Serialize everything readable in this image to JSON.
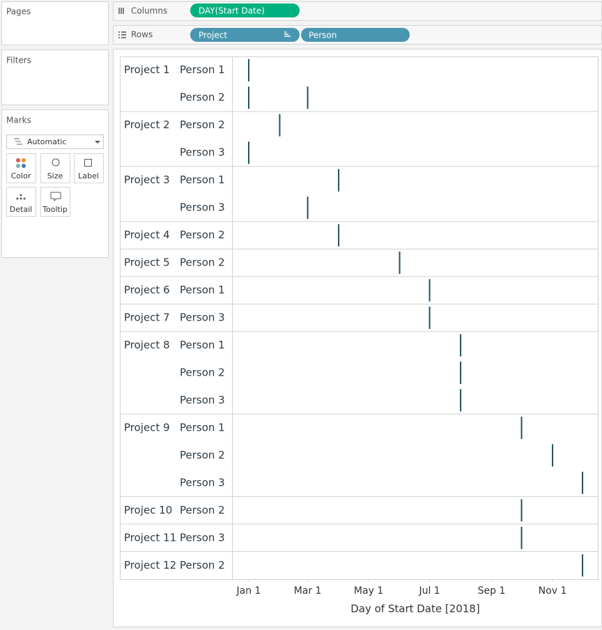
{
  "ui": {
    "panels": {
      "pages": "Pages",
      "filters": "Filters",
      "marks": "Marks"
    },
    "mark_type": "Automatic",
    "mark_buttons": [
      "Color",
      "Size",
      "Label",
      "Detail",
      "Tooltip"
    ],
    "shelves": {
      "columns": {
        "label": "Columns",
        "pills": [
          "DAY(Start Date)"
        ]
      },
      "rows": {
        "label": "Rows",
        "pills": [
          "Project",
          "Person"
        ]
      }
    }
  },
  "chart_data": {
    "type": "gantt",
    "x_label": "Day of Start Date [2018]",
    "color": "#24505f",
    "xlim": [
      -15.7,
      351
    ],
    "xticks": [
      {
        "value": 1,
        "label": "Jan 1"
      },
      {
        "value": 60,
        "label": "Mar 1"
      },
      {
        "value": 121,
        "label": "May 1"
      },
      {
        "value": 182,
        "label": "Jul 1"
      },
      {
        "value": 244,
        "label": "Sep 1"
      },
      {
        "value": 305,
        "label": "Nov 1"
      }
    ],
    "groups": [
      {
        "project": "Project 1",
        "people": [
          {
            "person": "Person 1",
            "starts": [
              1
            ]
          },
          {
            "person": "Person 2",
            "starts": [
              1,
              60
            ]
          }
        ]
      },
      {
        "project": "Project 2",
        "people": [
          {
            "person": "Person 2",
            "starts": [
              32
            ]
          },
          {
            "person": "Person 3",
            "starts": [
              1
            ]
          }
        ]
      },
      {
        "project": "Project 3",
        "people": [
          {
            "person": "Person 1",
            "starts": [
              91
            ]
          },
          {
            "person": "Person 3",
            "starts": [
              60
            ]
          }
        ]
      },
      {
        "project": "Project 4",
        "people": [
          {
            "person": "Person 2",
            "starts": [
              91
            ]
          }
        ]
      },
      {
        "project": "Project 5",
        "people": [
          {
            "person": "Person 2",
            "starts": [
              152
            ]
          }
        ]
      },
      {
        "project": "Project 6",
        "people": [
          {
            "person": "Person 1",
            "starts": [
              182
            ]
          }
        ]
      },
      {
        "project": "Project 7",
        "people": [
          {
            "person": "Person 3",
            "starts": [
              182
            ]
          }
        ]
      },
      {
        "project": "Project 8",
        "people": [
          {
            "person": "Person 1",
            "starts": [
              213
            ]
          },
          {
            "person": "Person 2",
            "starts": [
              213
            ]
          },
          {
            "person": "Person 3",
            "starts": [
              213
            ]
          }
        ]
      },
      {
        "project": "Project 9",
        "people": [
          {
            "person": "Person 1",
            "starts": [
              274
            ]
          },
          {
            "person": "Person 2",
            "starts": [
              305
            ]
          },
          {
            "person": "Person 3",
            "starts": [
              335
            ]
          }
        ]
      },
      {
        "project": "Projec 10",
        "people": [
          {
            "person": "Person 2",
            "starts": [
              274
            ]
          }
        ]
      },
      {
        "project": "Project 11",
        "people": [
          {
            "person": "Person 3",
            "starts": [
              274
            ]
          }
        ]
      },
      {
        "project": "Project 12",
        "people": [
          {
            "person": "Person 2",
            "starts": [
              335
            ]
          }
        ]
      }
    ]
  }
}
